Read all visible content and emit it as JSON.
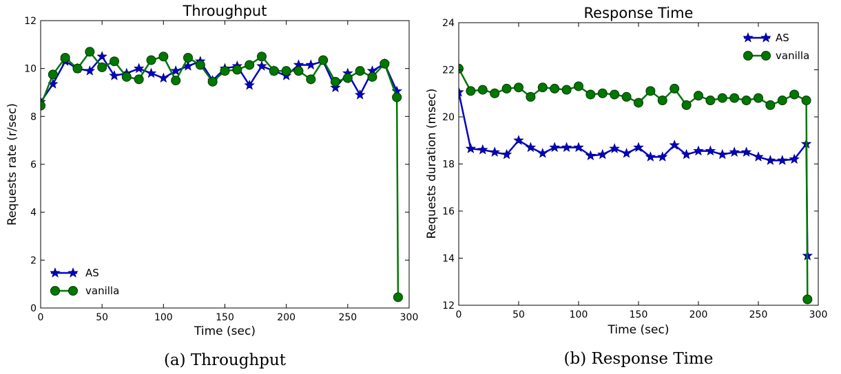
{
  "chart_data": [
    {
      "type": "line",
      "title": "Throughput",
      "caption": "(a) Throughput",
      "xlabel": "Time (sec)",
      "ylabel": "Requests rate (r/sec)",
      "xlim": [
        0,
        300
      ],
      "ylim": [
        0,
        12
      ],
      "xticks": [
        0,
        50,
        100,
        150,
        200,
        250,
        300
      ],
      "yticks": [
        0,
        2,
        4,
        6,
        8,
        10,
        12
      ],
      "legend_position": "lower-left",
      "grid": false,
      "x": [
        0,
        10,
        20,
        30,
        40,
        50,
        60,
        70,
        80,
        90,
        100,
        110,
        120,
        130,
        140,
        150,
        160,
        170,
        180,
        190,
        200,
        210,
        220,
        230,
        240,
        250,
        260,
        270,
        280,
        290
      ],
      "series": [
        {
          "name": "AS",
          "color": "#0000cc",
          "marker": "star",
          "values": [
            8.6,
            9.35,
            10.3,
            10.0,
            9.9,
            10.5,
            9.7,
            9.8,
            10.0,
            9.8,
            9.6,
            9.9,
            10.1,
            10.3,
            9.5,
            10.0,
            10.1,
            9.3,
            10.1,
            9.9,
            9.7,
            10.15,
            10.15,
            10.3,
            9.2,
            9.8,
            8.9,
            9.9,
            10.2,
            9.05
          ]
        },
        {
          "name": "vanilla",
          "color": "#007700",
          "marker": "circle",
          "values": [
            8.45,
            9.75,
            10.45,
            10.0,
            10.7,
            10.05,
            10.3,
            9.65,
            9.55,
            10.35,
            10.5,
            9.5,
            10.45,
            10.15,
            9.45,
            9.9,
            9.95,
            10.15,
            10.5,
            9.9,
            9.9,
            9.9,
            9.55,
            10.35,
            9.45,
            9.6,
            9.9,
            9.65,
            10.2,
            8.8
          ]
        }
      ],
      "extra_points": [
        {
          "series": "vanilla",
          "x": 291,
          "y": 0.45
        }
      ]
    },
    {
      "type": "line",
      "title": "Response Time",
      "caption": "(b) Response Time",
      "xlabel": "Time (sec)",
      "ylabel": "Requests duration (msec)",
      "xlim": [
        0,
        300
      ],
      "ylim": [
        12,
        24
      ],
      "xticks": [
        0,
        50,
        100,
        150,
        200,
        250,
        300
      ],
      "yticks": [
        12,
        14,
        16,
        18,
        20,
        22,
        24
      ],
      "legend_position": "upper-right",
      "grid": false,
      "x": [
        0,
        10,
        20,
        30,
        40,
        50,
        60,
        70,
        80,
        90,
        100,
        110,
        120,
        130,
        140,
        150,
        160,
        170,
        180,
        190,
        200,
        210,
        220,
        230,
        240,
        250,
        260,
        270,
        280,
        290
      ],
      "series": [
        {
          "name": "AS",
          "color": "#0000cc",
          "marker": "star",
          "values": [
            21.05,
            18.65,
            18.6,
            18.5,
            18.4,
            19.0,
            18.7,
            18.45,
            18.7,
            18.7,
            18.7,
            18.35,
            18.4,
            18.65,
            18.45,
            18.7,
            18.3,
            18.3,
            18.8,
            18.4,
            18.55,
            18.55,
            18.4,
            18.5,
            18.5,
            18.3,
            18.15,
            18.15,
            18.2,
            18.85
          ]
        },
        {
          "name": "vanilla",
          "color": "#007700",
          "marker": "circle",
          "values": [
            22.05,
            21.1,
            21.15,
            21.0,
            21.2,
            21.25,
            20.85,
            21.25,
            21.2,
            21.15,
            21.3,
            20.95,
            21.0,
            20.95,
            20.85,
            20.6,
            21.1,
            20.7,
            21.2,
            20.5,
            20.9,
            20.7,
            20.8,
            20.8,
            20.7,
            20.8,
            20.5,
            20.7,
            20.95,
            20.7
          ]
        }
      ],
      "extra_points": [
        {
          "series": "AS",
          "x": 291,
          "y": 14.1
        },
        {
          "series": "vanilla",
          "x": 291,
          "y": 12.25
        }
      ]
    }
  ]
}
